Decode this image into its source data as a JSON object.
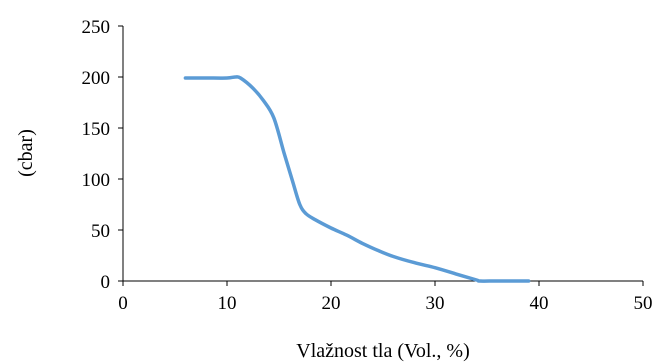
{
  "chart_data": {
    "type": "line",
    "title": "",
    "xlabel": "Vlažnost tla (Vol., %)",
    "ylabel": "(cbar)",
    "xlim": [
      0,
      50
    ],
    "ylim": [
      0,
      250
    ],
    "x_ticks": [
      "0",
      "10",
      "20",
      "30",
      "40",
      "50"
    ],
    "y_ticks": [
      "0",
      "50",
      "100",
      "150",
      "200",
      "250"
    ],
    "grid": false,
    "legend": "none",
    "series": [
      {
        "color": "#5b9bd5",
        "points": [
          [
            6,
            199
          ],
          [
            8,
            199
          ],
          [
            10,
            199
          ],
          [
            10.8,
            200
          ],
          [
            11.3,
            199
          ],
          [
            12.5,
            189
          ],
          [
            13.5,
            177
          ],
          [
            14.5,
            160
          ],
          [
            15.5,
            125
          ],
          [
            16.3,
            98
          ],
          [
            17,
            75
          ],
          [
            17.6,
            66
          ],
          [
            18.5,
            60
          ],
          [
            20,
            52
          ],
          [
            21.5,
            45
          ],
          [
            23,
            37
          ],
          [
            24.5,
            30
          ],
          [
            26,
            24
          ],
          [
            28,
            18
          ],
          [
            30,
            13
          ],
          [
            32,
            7
          ],
          [
            34,
            1
          ],
          [
            34.3,
            0
          ],
          [
            36,
            0
          ],
          [
            39,
            0
          ]
        ]
      }
    ]
  }
}
